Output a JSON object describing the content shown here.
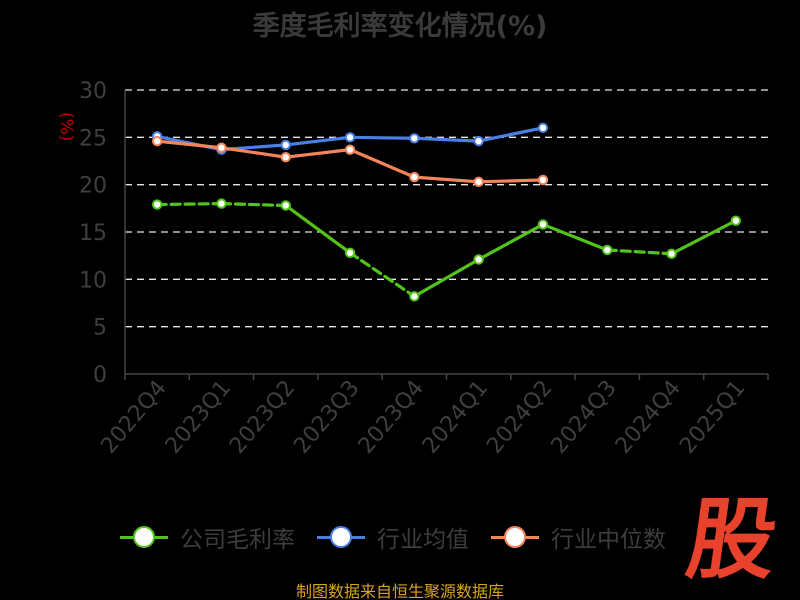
{
  "chart_data": {
    "type": "line",
    "title": "季度毛利率变化情况(%)",
    "ylabel": "(%)",
    "ylim": [
      0,
      30
    ],
    "yticks": [
      0,
      5,
      10,
      15,
      20,
      25,
      30
    ],
    "grid": true,
    "legend_position": "bottom",
    "categories": [
      "2022Q4",
      "2023Q1",
      "2023Q2",
      "2023Q3",
      "2023Q4",
      "2024Q1",
      "2024Q2",
      "2024Q3",
      "2024Q4",
      "2025Q1"
    ],
    "series": [
      {
        "name": "公司毛利率",
        "color": "#52c41a",
        "dashed_segments": true,
        "values": [
          17.9,
          18.0,
          17.8,
          12.8,
          8.2,
          12.1,
          15.8,
          13.1,
          12.7,
          16.2
        ]
      },
      {
        "name": "行业均值",
        "color": "#4a7fe6",
        "values": [
          25.1,
          23.7,
          24.2,
          25.0,
          24.9,
          24.6,
          26.0,
          null,
          null,
          null
        ]
      },
      {
        "name": "行业中位数",
        "color": "#f5845a",
        "values": [
          24.6,
          23.9,
          22.9,
          23.7,
          20.8,
          20.3,
          20.5,
          null,
          null,
          null
        ]
      }
    ]
  },
  "footer": {
    "source": "制图数据来自恒生聚源数据库"
  },
  "logo": {
    "text": "股"
  }
}
